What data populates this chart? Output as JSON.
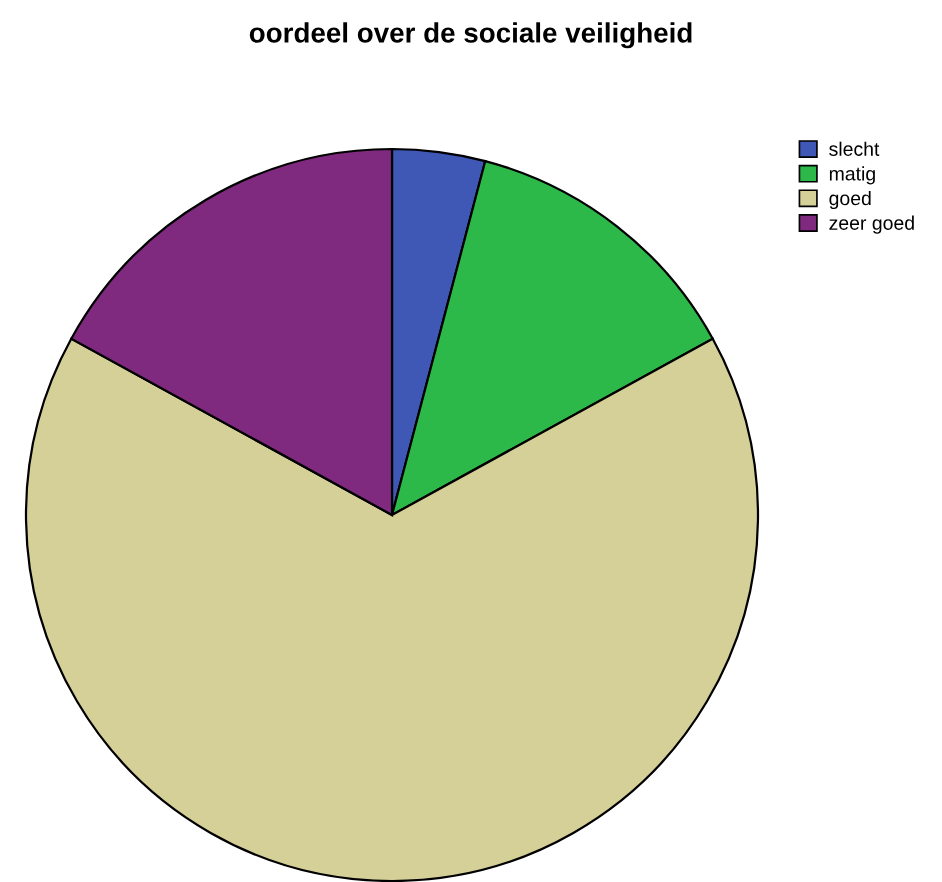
{
  "chart_data": {
    "type": "pie",
    "title": "oordeel over de sociale veiligheid",
    "categories": [
      "slecht",
      "matig",
      "goed",
      "zeer goed"
    ],
    "values": [
      4.1,
      12.9,
      66.0,
      17.0
    ],
    "colors": [
      "#3f57b5",
      "#2db84a",
      "#d5cf98",
      "#7f2a7f"
    ],
    "legend": "top right"
  }
}
